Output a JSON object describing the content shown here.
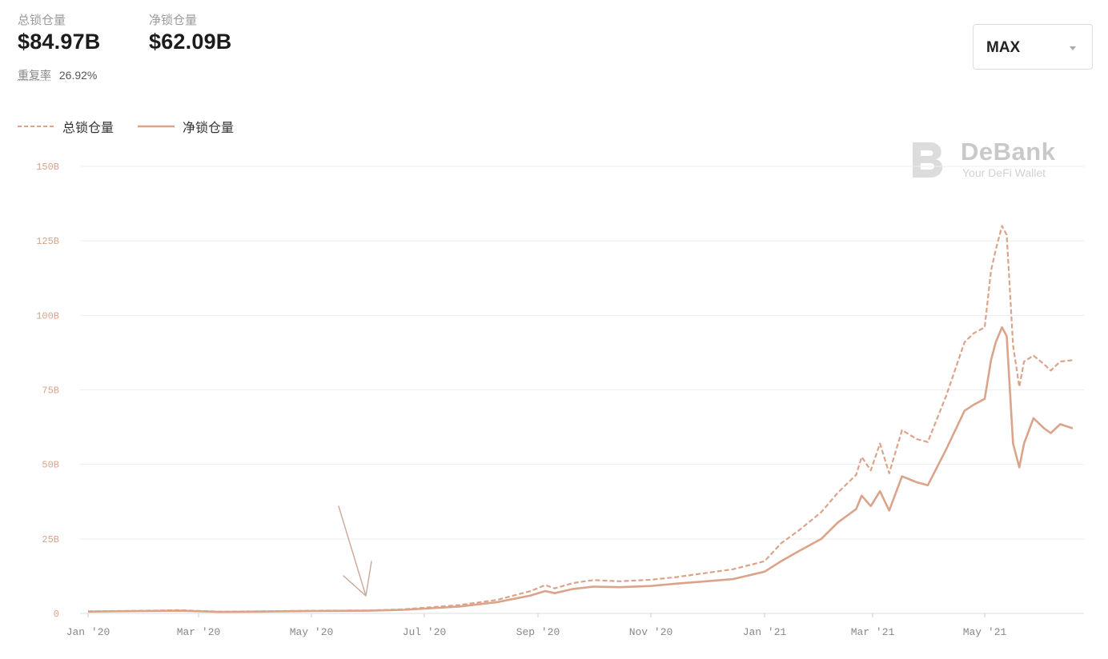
{
  "header": {
    "total_tvl_label": "总锁仓量",
    "total_tvl_value": "$84.97B",
    "net_tvl_label": "净锁仓量",
    "net_tvl_value": "$62.09B",
    "repeat_rate_label": "重复率",
    "repeat_rate_value": "26.92%"
  },
  "range_select": {
    "value": "MAX"
  },
  "watermark": {
    "name": "DeBank",
    "tagline": "Your DeFi Wallet"
  },
  "colors": {
    "series": "#dba48a",
    "grid": "#eeeeee",
    "axis_text": "#d7a28b"
  },
  "chart_data": {
    "type": "line",
    "title": "",
    "xlabel": "",
    "ylabel": "",
    "ylim": [
      0,
      150
    ],
    "y_unit": "B",
    "y_ticks": [
      0,
      25,
      50,
      75,
      100,
      125,
      150
    ],
    "y_tick_labels": [
      "0",
      "25B",
      "50B",
      "75B",
      "100B",
      "125B",
      "150B"
    ],
    "x_ticks": [
      "2020-01-01",
      "2020-03-01",
      "2020-05-01",
      "2020-07-01",
      "2020-09-01",
      "2020-11-01",
      "2021-01-01",
      "2021-03-01",
      "2021-05-01"
    ],
    "x_tick_labels": [
      "Jan '20",
      "Mar '20",
      "May '20",
      "Jul '20",
      "Sep '20",
      "Nov '20",
      "Jan '21",
      "Mar '21",
      "May '21"
    ],
    "xlim": [
      "2020-01-01",
      "2021-06-26"
    ],
    "grid": true,
    "legend_position": "top-left",
    "series": [
      {
        "name": "总锁仓量",
        "style": "dashed",
        "points": [
          [
            "2020-01-01",
            0.7
          ],
          [
            "2020-02-01",
            0.9
          ],
          [
            "2020-02-20",
            1.1
          ],
          [
            "2020-03-12",
            0.6
          ],
          [
            "2020-04-01",
            0.7
          ],
          [
            "2020-05-01",
            0.9
          ],
          [
            "2020-06-01",
            1.0
          ],
          [
            "2020-06-20",
            1.4
          ],
          [
            "2020-07-01",
            1.9
          ],
          [
            "2020-07-20",
            2.8
          ],
          [
            "2020-08-10",
            4.6
          ],
          [
            "2020-08-28",
            7.5
          ],
          [
            "2020-09-05",
            9.5
          ],
          [
            "2020-09-10",
            8.4
          ],
          [
            "2020-09-20",
            10.2
          ],
          [
            "2020-10-01",
            11.2
          ],
          [
            "2020-10-15",
            10.8
          ],
          [
            "2020-11-01",
            11.3
          ],
          [
            "2020-11-15",
            12.2
          ],
          [
            "2020-12-01",
            13.6
          ],
          [
            "2020-12-15",
            14.8
          ],
          [
            "2021-01-01",
            17.5
          ],
          [
            "2021-01-10",
            23.5
          ],
          [
            "2021-01-20",
            28.0
          ],
          [
            "2021-02-01",
            34.0
          ],
          [
            "2021-02-10",
            40.5
          ],
          [
            "2021-02-20",
            46.5
          ],
          [
            "2021-02-23",
            52.5
          ],
          [
            "2021-02-28",
            48.0
          ],
          [
            "2021-03-05",
            57.0
          ],
          [
            "2021-03-10",
            47.0
          ],
          [
            "2021-03-17",
            61.5
          ],
          [
            "2021-03-25",
            58.5
          ],
          [
            "2021-03-31",
            57.5
          ],
          [
            "2021-04-10",
            73.0
          ],
          [
            "2021-04-20",
            91.0
          ],
          [
            "2021-04-25",
            94.0
          ],
          [
            "2021-05-01",
            96.0
          ],
          [
            "2021-05-05",
            115.0
          ],
          [
            "2021-05-08",
            122.0
          ],
          [
            "2021-05-12",
            130.0
          ],
          [
            "2021-05-15",
            127.0
          ],
          [
            "2021-05-19",
            90.0
          ],
          [
            "2021-05-23",
            76.0
          ],
          [
            "2021-05-26",
            84.5
          ],
          [
            "2021-06-01",
            86.5
          ],
          [
            "2021-06-08",
            83.5
          ],
          [
            "2021-06-12",
            81.5
          ],
          [
            "2021-06-18",
            84.5
          ],
          [
            "2021-06-26",
            84.97
          ]
        ]
      },
      {
        "name": "净锁仓量",
        "style": "solid",
        "points": [
          [
            "2020-01-01",
            0.6
          ],
          [
            "2020-02-01",
            0.8
          ],
          [
            "2020-02-20",
            0.9
          ],
          [
            "2020-03-12",
            0.5
          ],
          [
            "2020-04-01",
            0.6
          ],
          [
            "2020-05-01",
            0.8
          ],
          [
            "2020-06-01",
            0.9
          ],
          [
            "2020-06-20",
            1.2
          ],
          [
            "2020-07-01",
            1.6
          ],
          [
            "2020-07-20",
            2.3
          ],
          [
            "2020-08-10",
            3.8
          ],
          [
            "2020-08-28",
            6.0
          ],
          [
            "2020-09-05",
            7.5
          ],
          [
            "2020-09-10",
            6.8
          ],
          [
            "2020-09-20",
            8.2
          ],
          [
            "2020-10-01",
            9.0
          ],
          [
            "2020-10-15",
            8.8
          ],
          [
            "2020-11-01",
            9.2
          ],
          [
            "2020-11-15",
            10.0
          ],
          [
            "2020-12-01",
            10.8
          ],
          [
            "2020-12-15",
            11.5
          ],
          [
            "2021-01-01",
            14.0
          ],
          [
            "2021-01-10",
            17.5
          ],
          [
            "2021-01-20",
            21.0
          ],
          [
            "2021-02-01",
            25.0
          ],
          [
            "2021-02-10",
            30.5
          ],
          [
            "2021-02-20",
            35.0
          ],
          [
            "2021-02-23",
            39.5
          ],
          [
            "2021-02-28",
            36.0
          ],
          [
            "2021-03-05",
            41.0
          ],
          [
            "2021-03-10",
            34.5
          ],
          [
            "2021-03-17",
            46.0
          ],
          [
            "2021-03-25",
            44.0
          ],
          [
            "2021-03-31",
            43.0
          ],
          [
            "2021-04-10",
            55.0
          ],
          [
            "2021-04-20",
            68.0
          ],
          [
            "2021-04-25",
            70.0
          ],
          [
            "2021-05-01",
            72.0
          ],
          [
            "2021-05-05",
            85.0
          ],
          [
            "2021-05-08",
            91.0
          ],
          [
            "2021-05-12",
            96.0
          ],
          [
            "2021-05-15",
            93.0
          ],
          [
            "2021-05-19",
            57.0
          ],
          [
            "2021-05-23",
            49.0
          ],
          [
            "2021-05-26",
            57.0
          ],
          [
            "2021-06-01",
            65.5
          ],
          [
            "2021-06-08",
            62.0
          ],
          [
            "2021-06-12",
            60.5
          ],
          [
            "2021-06-18",
            63.5
          ],
          [
            "2021-06-26",
            62.09
          ]
        ]
      }
    ]
  }
}
